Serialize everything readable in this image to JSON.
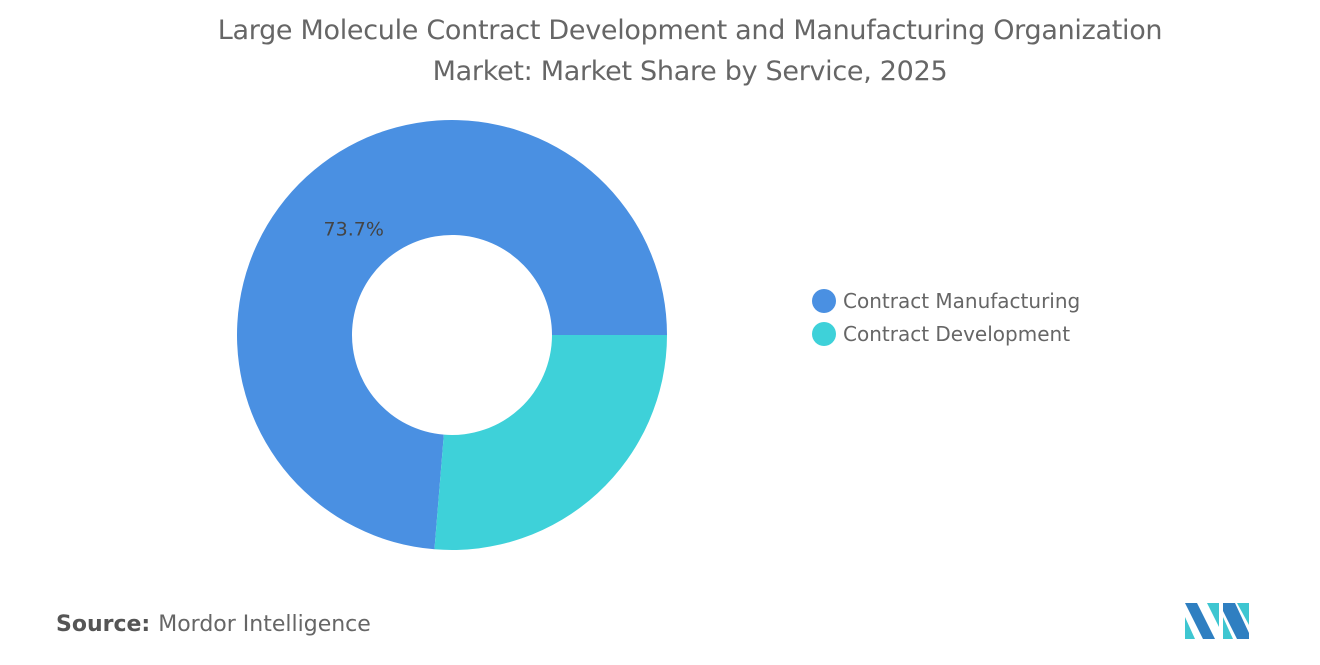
{
  "chart_data": {
    "type": "pie",
    "variant": "donut",
    "title": "Large Molecule Contract Development and Manufacturing Organization Market: Market Share by Service, 2025",
    "title_lines": [
      "Large Molecule Contract Development and Manufacturing Organization",
      "Market: Market Share by Service, 2025"
    ],
    "categories": [
      "Contract Manufacturing",
      "Contract Development"
    ],
    "values": [
      73.7,
      26.3
    ],
    "colors": [
      "#4a90e2",
      "#3ed1d9"
    ],
    "data_labels": [
      "73.7%",
      ""
    ],
    "legend_position": "right"
  },
  "source": {
    "label": "Source:",
    "text": "Mordor Intelligence"
  },
  "logo": {
    "colors": [
      "#2f7fc1",
      "#3ec6d1"
    ]
  }
}
